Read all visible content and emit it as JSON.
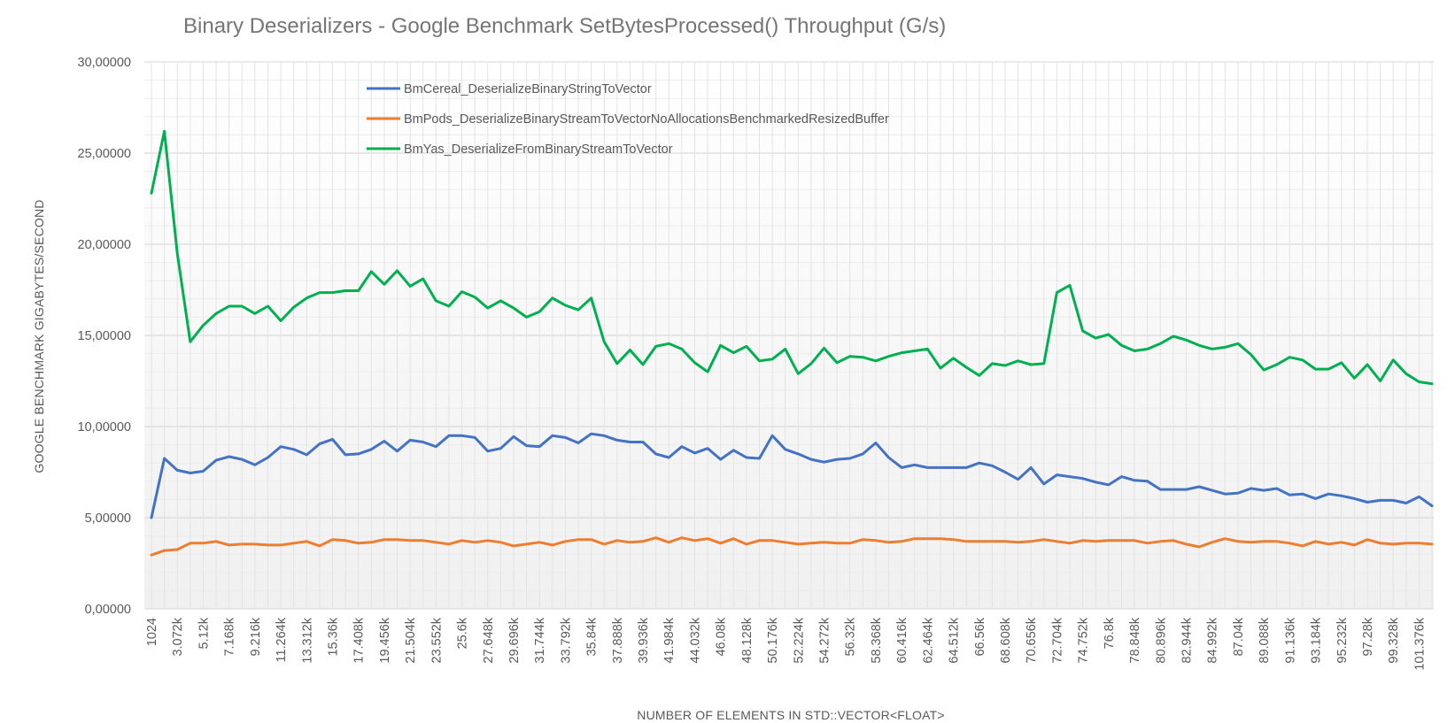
{
  "chart_data": {
    "type": "line",
    "title": "Binary Deserializers - Google Benchmark SetBytesProcessed() Throughput (G/s)",
    "xlabel": "NUMBER OF ELEMENTS IN STD::VECTOR<FLOAT>",
    "ylabel": "GOOGLE BENCHMARK GIGABYTES/SECOND",
    "ylim": [
      0,
      30
    ],
    "y_ticks": [
      "0,00000",
      "5,00000",
      "10,00000",
      "15,00000",
      "20,00000",
      "25,00000",
      "30,00000"
    ],
    "y_tick_values": [
      0,
      5,
      10,
      15,
      20,
      25,
      30
    ],
    "x_tick_labels": [
      "1024",
      "3.072k",
      "5.12k",
      "7.168k",
      "9.216k",
      "11.264k",
      "13.312k",
      "15.36k",
      "17.408k",
      "19.456k",
      "21.504k",
      "23.552k",
      "25.6k",
      "27.648k",
      "29.696k",
      "31.744k",
      "33.792k",
      "35.84k",
      "37.888k",
      "39.936k",
      "41.984k",
      "44.032k",
      "46.08k",
      "48.128k",
      "50.176k",
      "52.224k",
      "54.272k",
      "56.32k",
      "58.368k",
      "60.416k",
      "62.464k",
      "64.512k",
      "66.56k",
      "68.608k",
      "70.656k",
      "72.704k",
      "74.752k",
      "76.8k",
      "78.848k",
      "80.896k",
      "82.944k",
      "84.992k",
      "87.04k",
      "89.088k",
      "91.136k",
      "93.184k",
      "95.232k",
      "97.28k",
      "99.328k",
      "101.376k"
    ],
    "x_tick_every": 2,
    "point_count": 100,
    "grid": true,
    "legend_position": "top-left-inside",
    "series": [
      {
        "name": "BmCereal_DeserializeBinaryStringToVector",
        "color": "#4472C4",
        "values": [
          5.0,
          8.25,
          7.6,
          7.45,
          7.55,
          8.15,
          8.35,
          8.2,
          7.9,
          8.3,
          8.9,
          8.75,
          8.45,
          9.05,
          9.3,
          8.45,
          8.5,
          8.75,
          9.2,
          8.65,
          9.25,
          9.15,
          8.9,
          9.5,
          9.5,
          9.4,
          8.65,
          8.8,
          9.45,
          8.95,
          8.9,
          9.5,
          9.4,
          9.1,
          9.6,
          9.5,
          9.25,
          9.15,
          9.15,
          8.5,
          8.3,
          8.9,
          8.55,
          8.8,
          8.2,
          8.7,
          8.3,
          8.25,
          9.5,
          8.75,
          8.5,
          8.2,
          8.05,
          8.2,
          8.25,
          8.5,
          9.1,
          8.3,
          7.75,
          7.9,
          7.75,
          7.75,
          7.75,
          7.75,
          8.0,
          7.85,
          7.5,
          7.1,
          7.75,
          6.85,
          7.35,
          7.25,
          7.15,
          6.95,
          6.8,
          7.25,
          7.05,
          7.0,
          6.55,
          6.55,
          6.55,
          6.7,
          6.5,
          6.3,
          6.35,
          6.6,
          6.5,
          6.6,
          6.25,
          6.3,
          6.05,
          6.3,
          6.2,
          6.05,
          5.85,
          5.95,
          5.95,
          5.8,
          6.15,
          5.65
        ]
      },
      {
        "name": "BmPods_DeserializeBinaryStreamToVectorNoAllocationsBenchmarkedResizedBuffer",
        "color": "#ED7D31",
        "values": [
          2.95,
          3.2,
          3.25,
          3.6,
          3.6,
          3.7,
          3.5,
          3.55,
          3.55,
          3.5,
          3.5,
          3.6,
          3.7,
          3.45,
          3.8,
          3.75,
          3.6,
          3.65,
          3.8,
          3.8,
          3.75,
          3.75,
          3.65,
          3.55,
          3.75,
          3.65,
          3.75,
          3.65,
          3.45,
          3.55,
          3.65,
          3.5,
          3.7,
          3.8,
          3.8,
          3.55,
          3.75,
          3.65,
          3.7,
          3.9,
          3.65,
          3.9,
          3.75,
          3.85,
          3.6,
          3.85,
          3.55,
          3.75,
          3.75,
          3.65,
          3.55,
          3.6,
          3.65,
          3.6,
          3.6,
          3.8,
          3.75,
          3.65,
          3.7,
          3.85,
          3.85,
          3.85,
          3.8,
          3.7,
          3.7,
          3.7,
          3.7,
          3.65,
          3.7,
          3.8,
          3.7,
          3.6,
          3.75,
          3.7,
          3.75,
          3.75,
          3.75,
          3.6,
          3.7,
          3.75,
          3.55,
          3.4,
          3.65,
          3.85,
          3.7,
          3.65,
          3.7,
          3.7,
          3.6,
          3.45,
          3.7,
          3.55,
          3.65,
          3.5,
          3.8,
          3.6,
          3.55,
          3.6,
          3.6,
          3.55
        ]
      },
      {
        "name": "BmYas_DeserializeFromBinaryStreamToVector",
        "color": "#00B050",
        "values": [
          22.8,
          26.2,
          19.5,
          14.65,
          15.55,
          16.2,
          16.6,
          16.6,
          16.2,
          16.6,
          15.8,
          16.55,
          17.05,
          17.35,
          17.35,
          17.45,
          17.45,
          18.5,
          17.8,
          18.55,
          17.7,
          18.1,
          16.9,
          16.6,
          17.4,
          17.1,
          16.5,
          16.9,
          16.5,
          16.0,
          16.3,
          17.05,
          16.65,
          16.4,
          17.05,
          14.65,
          13.45,
          14.2,
          13.4,
          14.4,
          14.55,
          14.25,
          13.5,
          13.0,
          14.45,
          14.05,
          14.4,
          13.6,
          13.7,
          14.25,
          12.9,
          13.45,
          14.3,
          13.5,
          13.85,
          13.8,
          13.6,
          13.85,
          14.05,
          14.15,
          14.25,
          13.2,
          13.75,
          13.25,
          12.8,
          13.45,
          13.35,
          13.6,
          13.4,
          13.45,
          17.35,
          17.75,
          15.25,
          14.85,
          15.05,
          14.45,
          14.15,
          14.25,
          14.55,
          14.95,
          14.75,
          14.45,
          14.25,
          14.35,
          14.55,
          13.95,
          13.1,
          13.4,
          13.8,
          13.65,
          13.15,
          13.15,
          13.5,
          12.65,
          13.4,
          12.5,
          13.65,
          12.9,
          12.45,
          12.35
        ]
      }
    ]
  }
}
